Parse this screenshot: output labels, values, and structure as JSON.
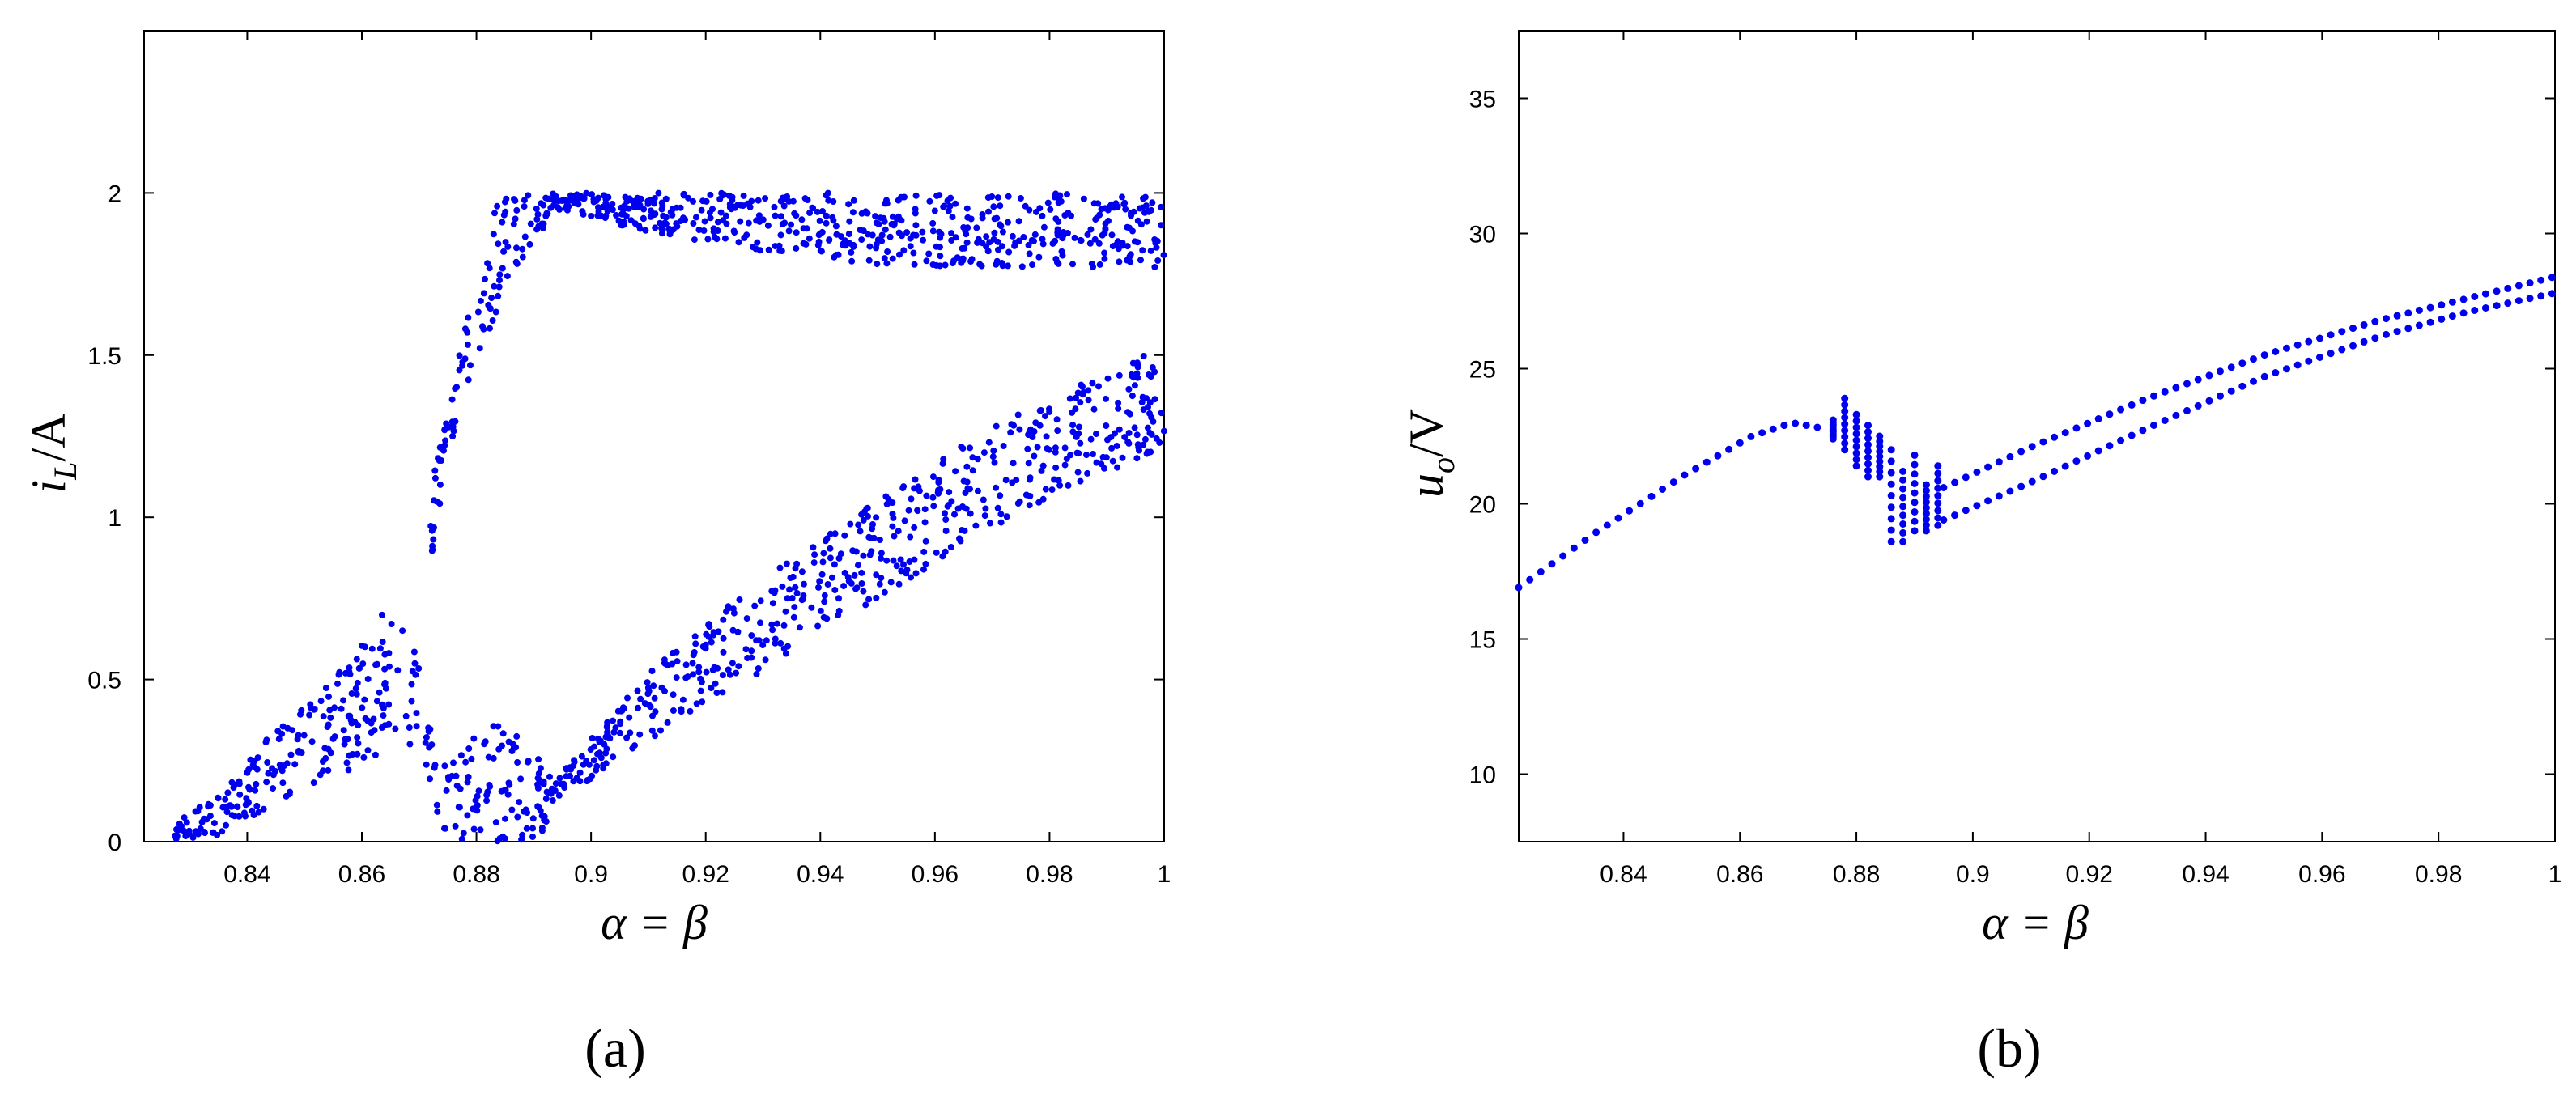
{
  "chart_data": [
    {
      "type": "scatter",
      "panel_label": "(a)",
      "ylabel": "iL/A",
      "ylabel_parts": {
        "main": "i",
        "sub": "L",
        "rest": "/A"
      },
      "xlabel": "α = β",
      "xlim": [
        0.822,
        1.0
      ],
      "ylim": [
        0,
        2.5
      ],
      "x_ticks": [
        "0.84",
        "0.86",
        "0.88",
        "0.9",
        "0.92",
        "0.94",
        "0.96",
        "0.98",
        "1"
      ],
      "y_ticks": [
        "0",
        "0.5",
        "1",
        "1.5",
        "2"
      ],
      "grid": false,
      "color": "#0000ee",
      "bands": [
        {
          "name": "",
          "x": [
            0.827,
            0.835,
            0.845,
            0.855,
            0.862,
            0.866,
            0.87,
            0.873
          ],
          "y_low": [
            0.0,
            0.02,
            0.12,
            0.2,
            0.25,
            0.3,
            0.25,
            0.15
          ],
          "y_high": [
            0.05,
            0.15,
            0.35,
            0.5,
            0.65,
            0.78,
            0.55,
            0.3
          ]
        },
        {
          "name": "",
          "x": [
            0.873,
            0.876,
            0.879,
            0.882,
            0.885,
            0.889,
            0.893
          ],
          "y_low": [
            0.0,
            0.0,
            0.0,
            0.0,
            0.0,
            0.0,
            0.05
          ],
          "y_high": [
            0.3,
            0.3,
            0.32,
            0.35,
            0.38,
            0.3,
            0.2
          ]
        },
        {
          "name": "",
          "x": [
            0.872,
            0.875,
            0.878,
            0.881,
            0.883,
            0.886,
            0.89,
            0.894
          ],
          "y_low": [
            0.85,
            1.2,
            1.35,
            1.5,
            1.6,
            1.75,
            1.85,
            1.95
          ],
          "y_high": [
            1.1,
            1.35,
            1.62,
            1.75,
            2.0,
            2.0,
            2.0,
            2.0
          ]
        },
        {
          "name": "",
          "x": [
            0.894,
            0.91,
            0.93,
            0.95,
            0.97,
            1.0
          ],
          "y_low": [
            1.95,
            1.88,
            1.82,
            1.78,
            1.77,
            1.77
          ],
          "y_high": [
            2.0,
            2.0,
            2.0,
            2.0,
            2.0,
            2.0
          ]
        },
        {
          "name": "",
          "x": [
            0.893,
            0.91,
            0.93,
            0.95,
            0.97,
            1.0
          ],
          "y_low": [
            0.12,
            0.3,
            0.52,
            0.75,
            0.97,
            1.22
          ],
          "y_high": [
            0.18,
            0.52,
            0.82,
            1.05,
            1.28,
            1.53
          ]
        }
      ]
    },
    {
      "type": "scatter",
      "panel_label": "(b)",
      "ylabel": "uo/V",
      "ylabel_parts": {
        "main": "u",
        "sub": "o",
        "rest": "/V"
      },
      "xlabel": "α = β",
      "xlim": [
        0.822,
        1.0
      ],
      "ylim": [
        7.5,
        37.5
      ],
      "x_ticks": [
        "0.84",
        "0.86",
        "0.88",
        "0.9",
        "0.92",
        "0.94",
        "0.96",
        "0.98",
        "1"
      ],
      "y_ticks": [
        "10",
        "15",
        "20",
        "25",
        "30",
        "35"
      ],
      "grid": false,
      "color": "#0000ee",
      "series": [
        {
          "name": "",
          "x": [
            0.822,
            0.835,
            0.85,
            0.862,
            0.869,
            0.874
          ],
          "y": [
            16.9,
            18.9,
            21.0,
            22.5,
            23.0,
            22.8
          ]
        },
        {
          "name": "",
          "x": [
            0.895,
            0.91,
            0.93,
            0.95,
            0.97,
            0.985,
            1.0
          ],
          "y": [
            20.6,
            22.1,
            23.9,
            25.5,
            26.8,
            27.6,
            28.4
          ]
        },
        {
          "name": "",
          "x": [
            0.895,
            0.91,
            0.93,
            0.95,
            0.97,
            0.985,
            1.0
          ],
          "y": [
            19.4,
            20.8,
            22.8,
            24.7,
            26.2,
            27.1,
            27.8
          ]
        }
      ],
      "clusters": [
        {
          "x": 0.876,
          "y_low": 22.4,
          "y_high": 23.1
        },
        {
          "x": 0.878,
          "y_low": 22.0,
          "y_high": 23.9
        },
        {
          "x": 0.88,
          "y_low": 21.4,
          "y_high": 23.3
        },
        {
          "x": 0.882,
          "y_low": 21.0,
          "y_high": 22.9
        },
        {
          "x": 0.884,
          "y_low": 21.0,
          "y_high": 22.5
        },
        {
          "x": 0.886,
          "y_low": 18.6,
          "y_high": 22.0
        },
        {
          "x": 0.888,
          "y_low": 18.6,
          "y_high": 21.2
        },
        {
          "x": 0.89,
          "y_low": 19.0,
          "y_high": 21.8
        },
        {
          "x": 0.892,
          "y_low": 19.0,
          "y_high": 20.7
        },
        {
          "x": 0.894,
          "y_low": 19.2,
          "y_high": 21.4
        }
      ]
    }
  ]
}
